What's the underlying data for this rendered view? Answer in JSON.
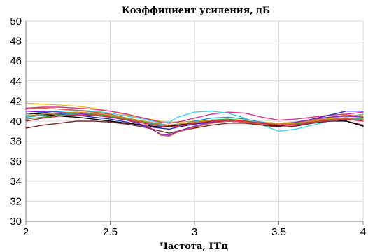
{
  "chart_data": {
    "type": "line",
    "title": "Коэффициент усиления, дБ",
    "xlabel": "Частота, ГГц",
    "ylabel": "",
    "xlim": [
      2,
      4
    ],
    "ylim": [
      30,
      50
    ],
    "x_ticks": [
      "2",
      "2.5",
      "3",
      "3.5",
      "4"
    ],
    "y_ticks": [
      "30",
      "32",
      "34",
      "36",
      "38",
      "40",
      "42",
      "44",
      "46",
      "48",
      "50"
    ],
    "grid": true,
    "legend": "none",
    "x": [
      2.0,
      2.1,
      2.2,
      2.3,
      2.4,
      2.5,
      2.6,
      2.7,
      2.8,
      2.85,
      2.9,
      3.0,
      3.1,
      3.2,
      3.3,
      3.4,
      3.5,
      3.6,
      3.7,
      3.8,
      3.9,
      4.0
    ],
    "series": [
      {
        "color": "#e8c21a",
        "values": [
          41.8,
          41.7,
          41.6,
          41.5,
          41.3,
          41.0,
          40.6,
          40.3,
          40.0,
          39.9,
          39.9,
          40.0,
          40.1,
          40.2,
          40.1,
          39.9,
          39.8,
          39.9,
          40.1,
          40.3,
          40.5,
          40.6
        ]
      },
      {
        "color": "#e0308a",
        "values": [
          41.3,
          41.4,
          41.4,
          41.3,
          41.2,
          41.0,
          40.7,
          40.3,
          39.9,
          39.8,
          39.9,
          40.3,
          40.7,
          40.9,
          40.8,
          40.4,
          40.1,
          40.2,
          40.4,
          40.6,
          40.7,
          40.9
        ]
      },
      {
        "color": "#1e9ad6",
        "values": [
          40.4,
          40.6,
          40.7,
          40.8,
          40.7,
          40.5,
          40.2,
          39.9,
          39.6,
          39.5,
          39.6,
          40.0,
          40.3,
          40.4,
          40.2,
          39.9,
          39.6,
          39.6,
          39.8,
          40.0,
          40.1,
          40.2
        ]
      },
      {
        "color": "#3fd2e8",
        "values": [
          40.6,
          40.9,
          41.0,
          41.1,
          41.0,
          40.8,
          40.5,
          40.2,
          39.8,
          39.9,
          40.4,
          40.9,
          41.0,
          40.8,
          40.3,
          39.6,
          39.0,
          39.2,
          39.6,
          40.0,
          40.4,
          40.7
        ]
      },
      {
        "color": "#2b2bd0",
        "values": [
          41.0,
          40.9,
          40.7,
          40.6,
          40.4,
          40.2,
          39.9,
          39.5,
          39.3,
          39.2,
          39.4,
          39.7,
          39.9,
          40.0,
          39.9,
          39.7,
          39.6,
          39.8,
          40.2,
          40.6,
          41.0,
          41.0
        ]
      },
      {
        "color": "#7b2a2a",
        "values": [
          39.3,
          39.6,
          39.8,
          40.0,
          40.0,
          39.9,
          39.7,
          39.4,
          39.0,
          38.8,
          39.0,
          39.3,
          39.6,
          39.8,
          39.8,
          39.6,
          39.4,
          39.5,
          39.8,
          40.0,
          40.0,
          39.6
        ]
      },
      {
        "color": "#000000",
        "values": [
          40.8,
          40.7,
          40.5,
          40.4,
          40.2,
          40.0,
          39.8,
          39.6,
          39.4,
          39.5,
          39.6,
          39.8,
          39.9,
          40.0,
          39.9,
          39.7,
          39.5,
          39.7,
          40.0,
          40.2,
          40.0,
          39.5
        ]
      },
      {
        "color": "#3aa63a",
        "values": [
          40.2,
          40.4,
          40.6,
          40.7,
          40.7,
          40.5,
          40.2,
          39.9,
          39.7,
          39.6,
          39.7,
          39.9,
          40.1,
          40.2,
          40.0,
          39.8,
          39.6,
          39.7,
          39.9,
          40.1,
          40.2,
          40.3
        ]
      },
      {
        "color": "#e05a3a",
        "values": [
          41.2,
          41.3,
          41.2,
          41.1,
          40.9,
          40.7,
          40.3,
          39.8,
          38.6,
          38.5,
          38.9,
          39.4,
          39.8,
          40.0,
          39.9,
          39.7,
          39.6,
          39.8,
          40.1,
          40.4,
          40.6,
          40.5
        ]
      },
      {
        "color": "#8a2ec2",
        "values": [
          41.0,
          41.0,
          40.9,
          40.8,
          40.6,
          40.4,
          40.1,
          39.6,
          38.7,
          38.6,
          39.0,
          39.5,
          39.9,
          40.1,
          40.0,
          39.8,
          39.7,
          39.9,
          40.2,
          40.4,
          40.5,
          40.4
        ]
      },
      {
        "color": "#c98a1e",
        "values": [
          40.5,
          40.7,
          40.8,
          40.9,
          40.8,
          40.6,
          40.3,
          40.0,
          39.7,
          39.6,
          39.7,
          39.9,
          40.1,
          40.1,
          40.0,
          39.8,
          39.7,
          39.8,
          40.0,
          40.2,
          40.3,
          40.2
        ]
      },
      {
        "color": "#d6284a",
        "values": [
          40.0,
          40.3,
          40.5,
          40.6,
          40.6,
          40.4,
          40.1,
          39.8,
          39.5,
          39.4,
          39.5,
          39.8,
          40.0,
          40.1,
          40.0,
          39.8,
          39.6,
          39.6,
          39.9,
          40.1,
          40.2,
          40.0
        ]
      }
    ]
  }
}
